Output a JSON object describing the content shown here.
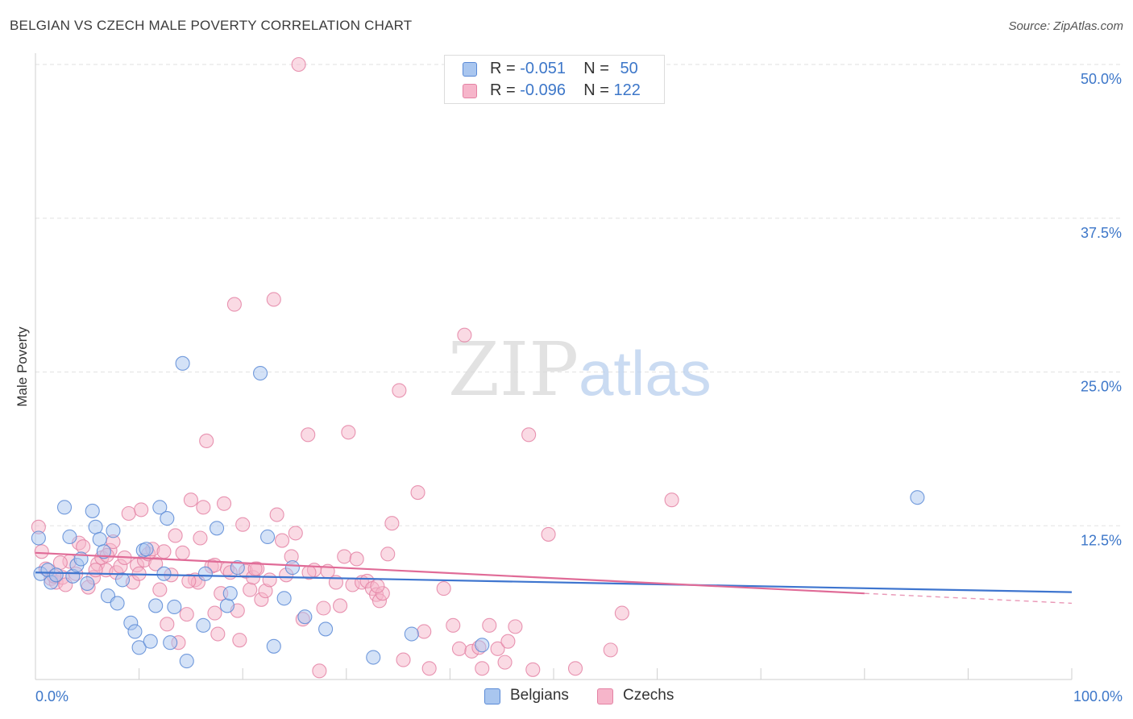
{
  "title": "BELGIAN VS CZECH MALE POVERTY CORRELATION CHART",
  "source": "Source: ZipAtlas.com",
  "watermark": {
    "zip": "ZIP",
    "atlas": "atlas"
  },
  "legend": {
    "rows": [
      {
        "r_label": "R = ",
        "r_value": "-0.051",
        "n_label": "N = ",
        "n_value": "50"
      },
      {
        "r_label": "R = ",
        "r_value": "-0.096",
        "n_label": "N = ",
        "n_value": "122"
      }
    ]
  },
  "colors": {
    "belgians_fill": "#a9c6ef",
    "belgians_stroke": "#5a8ad6",
    "belgians_line": "#3e75cf",
    "czechs_fill": "#f6b5ca",
    "czechs_stroke": "#e482a4",
    "czechs_line": "#e06b97",
    "tick_label": "#3d77c9",
    "grid": "#e2e2e2"
  },
  "chart_data": {
    "type": "scatter",
    "xlabel": "",
    "ylabel": "Male Poverty",
    "xlim": [
      0,
      100
    ],
    "ylim": [
      0,
      50
    ],
    "x_tick_labels": [
      "0.0%",
      "100.0%"
    ],
    "y_ticks": [
      12.5,
      25.0,
      37.5,
      50.0
    ],
    "y_tick_labels": [
      "12.5%",
      "25.0%",
      "37.5%",
      "50.0%"
    ],
    "grid": true,
    "legend_position": "bottom",
    "series": [
      {
        "name": "Belgians",
        "trend": {
          "x": [
            0,
            100
          ],
          "y": [
            8.7,
            7.1
          ]
        },
        "points": [
          [
            0.3,
            11.5
          ],
          [
            0.5,
            8.6
          ],
          [
            1.2,
            8.9
          ],
          [
            1.5,
            7.9
          ],
          [
            2.0,
            8.5
          ],
          [
            2.8,
            14.0
          ],
          [
            3.3,
            11.6
          ],
          [
            3.6,
            8.4
          ],
          [
            4.0,
            9.3
          ],
          [
            4.4,
            9.8
          ],
          [
            5.0,
            7.8
          ],
          [
            5.5,
            13.7
          ],
          [
            5.8,
            12.4
          ],
          [
            6.2,
            11.4
          ],
          [
            6.6,
            10.4
          ],
          [
            7.0,
            6.8
          ],
          [
            7.5,
            12.1
          ],
          [
            7.9,
            6.2
          ],
          [
            8.4,
            8.1
          ],
          [
            9.2,
            4.6
          ],
          [
            9.6,
            3.9
          ],
          [
            10.0,
            2.6
          ],
          [
            10.4,
            10.5
          ],
          [
            10.7,
            10.6
          ],
          [
            11.1,
            3.1
          ],
          [
            11.6,
            6.0
          ],
          [
            12.0,
            14.0
          ],
          [
            12.4,
            8.6
          ],
          [
            12.7,
            13.1
          ],
          [
            13.0,
            3.0
          ],
          [
            13.4,
            5.9
          ],
          [
            14.2,
            25.7
          ],
          [
            14.6,
            1.5
          ],
          [
            16.2,
            4.4
          ],
          [
            16.4,
            8.6
          ],
          [
            17.5,
            12.3
          ],
          [
            18.5,
            6.0
          ],
          [
            18.8,
            7.0
          ],
          [
            19.5,
            9.1
          ],
          [
            21.7,
            24.9
          ],
          [
            22.4,
            11.6
          ],
          [
            23.0,
            2.7
          ],
          [
            24.0,
            6.6
          ],
          [
            24.8,
            9.1
          ],
          [
            26.0,
            5.1
          ],
          [
            28.0,
            4.1
          ],
          [
            32.6,
            1.8
          ],
          [
            36.3,
            3.7
          ],
          [
            43.1,
            2.8
          ],
          [
            85.1,
            14.8
          ]
        ]
      },
      {
        "name": "Czechs",
        "trend": {
          "x": [
            0,
            80
          ],
          "y": [
            10.3,
            7.0
          ]
        },
        "trend_ext": {
          "x": [
            80,
            100
          ],
          "y": [
            7.0,
            6.2
          ]
        },
        "points": [
          [
            0.3,
            12.4
          ],
          [
            0.6,
            10.4
          ],
          [
            1.0,
            9.0
          ],
          [
            1.5,
            8.2
          ],
          [
            2.0,
            7.9
          ],
          [
            2.6,
            8.3
          ],
          [
            2.9,
            7.7
          ],
          [
            3.3,
            9.6
          ],
          [
            3.9,
            8.6
          ],
          [
            4.2,
            11.1
          ],
          [
            4.6,
            10.8
          ],
          [
            5.1,
            7.5
          ],
          [
            5.6,
            8.3
          ],
          [
            6.0,
            9.4
          ],
          [
            6.4,
            9.9
          ],
          [
            6.8,
            8.9
          ],
          [
            7.2,
            10.5
          ],
          [
            7.5,
            11.2
          ],
          [
            7.8,
            8.7
          ],
          [
            8.2,
            9.2
          ],
          [
            8.6,
            9.9
          ],
          [
            9.0,
            13.5
          ],
          [
            9.4,
            7.9
          ],
          [
            9.8,
            9.3
          ],
          [
            10.2,
            13.8
          ],
          [
            10.5,
            9.7
          ],
          [
            10.9,
            10.2
          ],
          [
            11.3,
            10.6
          ],
          [
            11.6,
            9.4
          ],
          [
            12.0,
            7.3
          ],
          [
            12.4,
            10.4
          ],
          [
            12.7,
            4.5
          ],
          [
            13.1,
            8.5
          ],
          [
            13.5,
            11.7
          ],
          [
            13.8,
            3.0
          ],
          [
            14.2,
            10.3
          ],
          [
            14.6,
            5.3
          ],
          [
            15.0,
            14.6
          ],
          [
            15.4,
            8.1
          ],
          [
            15.7,
            7.9
          ],
          [
            15.9,
            11.5
          ],
          [
            16.2,
            14.0
          ],
          [
            16.5,
            19.4
          ],
          [
            17.0,
            9.2
          ],
          [
            17.3,
            5.4
          ],
          [
            17.6,
            3.7
          ],
          [
            17.9,
            7.0
          ],
          [
            18.2,
            14.3
          ],
          [
            18.5,
            9.0
          ],
          [
            18.8,
            8.7
          ],
          [
            19.2,
            30.5
          ],
          [
            19.5,
            5.6
          ],
          [
            19.7,
            3.2
          ],
          [
            20.0,
            12.6
          ],
          [
            20.3,
            8.8
          ],
          [
            20.7,
            7.3
          ],
          [
            21.0,
            8.3
          ],
          [
            21.4,
            9.0
          ],
          [
            21.8,
            6.5
          ],
          [
            22.2,
            7.2
          ],
          [
            22.6,
            8.1
          ],
          [
            23.0,
            30.9
          ],
          [
            23.3,
            13.4
          ],
          [
            23.8,
            11.3
          ],
          [
            24.2,
            8.5
          ],
          [
            24.7,
            10.0
          ],
          [
            25.1,
            11.9
          ],
          [
            25.4,
            50.0
          ],
          [
            25.8,
            4.9
          ],
          [
            26.3,
            19.9
          ],
          [
            26.9,
            8.9
          ],
          [
            27.4,
            0.7
          ],
          [
            27.8,
            5.8
          ],
          [
            28.2,
            8.8
          ],
          [
            29.0,
            7.9
          ],
          [
            29.4,
            6.0
          ],
          [
            29.8,
            10.0
          ],
          [
            30.2,
            20.1
          ],
          [
            30.6,
            7.7
          ],
          [
            31.0,
            9.8
          ],
          [
            31.5,
            7.9
          ],
          [
            32.0,
            8.0
          ],
          [
            32.5,
            7.4
          ],
          [
            32.9,
            6.9
          ],
          [
            33.2,
            6.4
          ],
          [
            33.5,
            7.0
          ],
          [
            34.0,
            10.2
          ],
          [
            34.4,
            12.7
          ],
          [
            35.1,
            23.5
          ],
          [
            35.5,
            1.6
          ],
          [
            36.9,
            15.2
          ],
          [
            37.5,
            3.9
          ],
          [
            38.0,
            0.9
          ],
          [
            39.4,
            7.4
          ],
          [
            40.3,
            4.4
          ],
          [
            40.9,
            2.5
          ],
          [
            41.4,
            28.0
          ],
          [
            42.1,
            2.3
          ],
          [
            42.8,
            2.6
          ],
          [
            43.1,
            0.9
          ],
          [
            43.8,
            4.4
          ],
          [
            44.6,
            2.5
          ],
          [
            45.3,
            1.4
          ],
          [
            45.6,
            3.1
          ],
          [
            46.3,
            4.3
          ],
          [
            47.6,
            19.9
          ],
          [
            48.0,
            0.8
          ],
          [
            49.5,
            11.8
          ],
          [
            52.1,
            0.9
          ],
          [
            55.5,
            2.4
          ],
          [
            56.6,
            5.4
          ],
          [
            61.4,
            14.6
          ],
          [
            1.8,
            8.4
          ],
          [
            2.4,
            9.5
          ],
          [
            5.8,
            8.9
          ],
          [
            6.9,
            10.1
          ],
          [
            10.0,
            8.6
          ],
          [
            14.8,
            8.0
          ],
          [
            17.3,
            9.3
          ],
          [
            21.2,
            9.0
          ],
          [
            26.4,
            8.7
          ],
          [
            33.0,
            7.6
          ]
        ]
      }
    ]
  },
  "bottom_legend": [
    {
      "label": "Belgians"
    },
    {
      "label": "Czechs"
    }
  ]
}
